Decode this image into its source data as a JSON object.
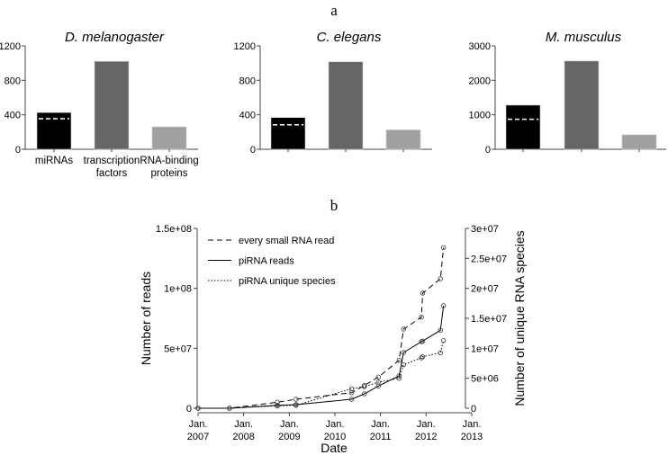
{
  "panel_labels": {
    "a": "a",
    "b": "b"
  },
  "chart_data": [
    {
      "type": "bar",
      "title": "D. melanogaster",
      "categories": [
        "miRNAs",
        "transcription factors",
        "RNA-binding proteins"
      ],
      "category_lines": [
        [
          "miRNAs"
        ],
        [
          "transcription",
          "factors"
        ],
        [
          "RNA-binding",
          "proteins"
        ]
      ],
      "values": [
        426,
        1020,
        260
      ],
      "dashed_marker_value": 355,
      "ylim": [
        0,
        1200
      ],
      "yticks": [
        0,
        400,
        800,
        1200
      ],
      "colors": [
        "#000000",
        "#666666",
        "#a0a0a0"
      ]
    },
    {
      "type": "bar",
      "title": "C. elegans",
      "categories": [
        "miRNAs",
        "transcription factors",
        "RNA-binding proteins"
      ],
      "values": [
        368,
        1015,
        225
      ],
      "dashed_marker_value": 285,
      "ylim": [
        0,
        1200
      ],
      "yticks": [
        0,
        400,
        800,
        1200
      ],
      "colors": [
        "#000000",
        "#666666",
        "#a0a0a0"
      ]
    },
    {
      "type": "bar",
      "title": "M. musculus",
      "categories": [
        "miRNAs",
        "transcription factors",
        "RNA-binding proteins"
      ],
      "values": [
        1280,
        2560,
        420
      ],
      "dashed_marker_value": 870,
      "ylim": [
        0,
        3000
      ],
      "yticks": [
        0,
        1000,
        2000,
        3000
      ],
      "colors": [
        "#000000",
        "#666666",
        "#a0a0a0"
      ]
    },
    {
      "type": "line",
      "xlabel": "Date",
      "ylabel": "Number of reads",
      "ylabel_right": "Number of unique RNA species",
      "xlim": [
        "2007-01-01",
        "2013-01-01"
      ],
      "xticks": [
        {
          "date": "2007-01-01",
          "label": [
            "Jan.",
            "2007"
          ]
        },
        {
          "date": "2008-01-01",
          "label": [
            "Jan.",
            "2008"
          ]
        },
        {
          "date": "2009-01-01",
          "label": [
            "Jan.",
            "2009"
          ]
        },
        {
          "date": "2010-01-01",
          "label": [
            "Jan.",
            "2010"
          ]
        },
        {
          "date": "2011-01-01",
          "label": [
            "Jan.",
            "2011"
          ]
        },
        {
          "date": "2012-01-01",
          "label": [
            "Jan.",
            "2012"
          ]
        },
        {
          "date": "2013-01-01",
          "label": [
            "Jan.",
            "2013"
          ]
        }
      ],
      "ylim": [
        0,
        150000000
      ],
      "yticks": [
        {
          "v": 0,
          "label": "0"
        },
        {
          "v": 50000000,
          "label": "5e+07"
        },
        {
          "v": 100000000,
          "label": "1e+08"
        },
        {
          "v": 150000000,
          "label": "1.5e+08"
        }
      ],
      "ylim_right": [
        0,
        30000000
      ],
      "yticks_right": [
        {
          "v": 0,
          "label": "0"
        },
        {
          "v": 5000000,
          "label": "5e+06"
        },
        {
          "v": 10000000,
          "label": "1e+07"
        },
        {
          "v": 15000000,
          "label": "1.5e+07"
        },
        {
          "v": 20000000,
          "label": "2e+07"
        },
        {
          "v": 25000000,
          "label": "2.5e+07"
        },
        {
          "v": 30000000,
          "label": "3e+07"
        }
      ],
      "legend_placement": "top-left",
      "x": [
        "2007-01-01",
        "2007-09-10",
        "2008-09-27",
        "2009-02-24",
        "2010-05-15",
        "2010-08-25",
        "2010-12-15",
        "2011-05-30",
        "2011-07-05",
        "2011-11-25",
        "2011-12-05",
        "2012-04-25",
        "2012-05-20"
      ],
      "series": [
        {
          "name": "every small RNA read",
          "axis": "left",
          "style": "dashed",
          "values": [
            0,
            0,
            5000000,
            7500000,
            13000000,
            19000000,
            26000000,
            40000000,
            66000000,
            76000000,
            96000000,
            108000000,
            134000000
          ]
        },
        {
          "name": "piRNA reads",
          "axis": "left",
          "style": "solid",
          "values": [
            0,
            0,
            2500000,
            3000000,
            7500000,
            12000000,
            18500000,
            27000000,
            46500000,
            55500000,
            56000000,
            65000000,
            85500000
          ]
        },
        {
          "name": "piRNA unique species",
          "axis": "right",
          "style": "dotted",
          "values": [
            0,
            0,
            400000,
            500000,
            3250000,
            3600000,
            4350000,
            5000000,
            7250000,
            8400000,
            8600000,
            9250000,
            11300000
          ]
        }
      ]
    }
  ]
}
